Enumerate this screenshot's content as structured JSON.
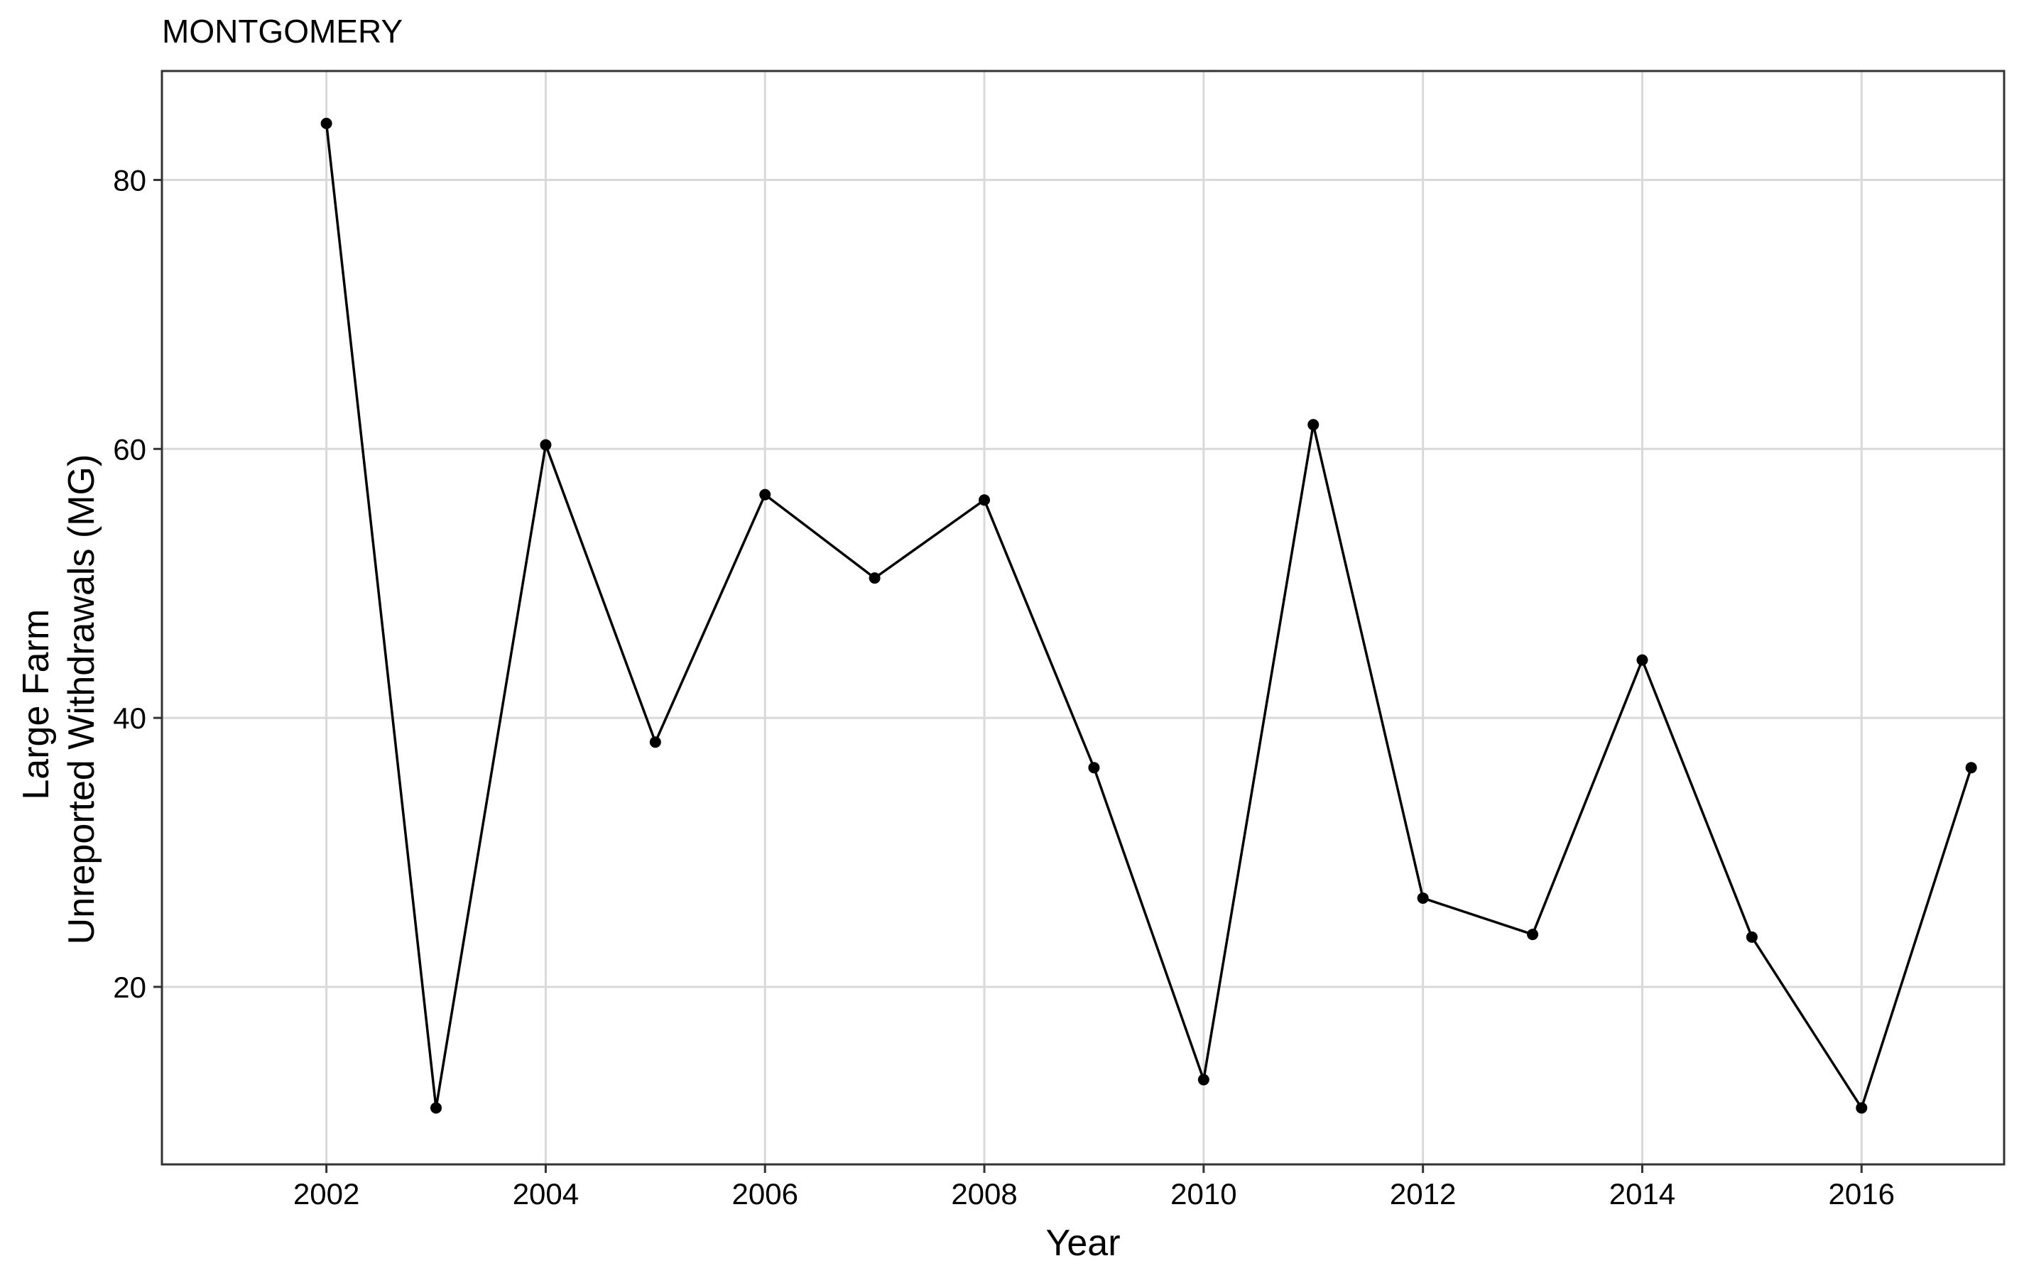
{
  "chart_data": {
    "type": "line",
    "title": "MONTGOMERY",
    "xlabel": "Year",
    "ylabel_lines": [
      "Large Farm",
      "Unreported Withdrawals (MG)"
    ],
    "x": [
      2002,
      2003,
      2004,
      2005,
      2006,
      2007,
      2008,
      2009,
      2010,
      2011,
      2012,
      2013,
      2014,
      2015,
      2016,
      2017
    ],
    "series": [
      {
        "values": [
          84.2,
          11.0,
          60.3,
          38.2,
          56.6,
          50.4,
          56.2,
          36.3,
          13.1,
          61.8,
          26.6,
          23.9,
          44.3,
          23.7,
          11.0,
          36.3
        ]
      }
    ],
    "xlim": [
      2000.5,
      2017.3
    ],
    "ylim": [
      6.8,
      88.1
    ],
    "xticks": [
      2002,
      2004,
      2006,
      2008,
      2010,
      2012,
      2014,
      2016
    ],
    "yticks": [
      20,
      40,
      60,
      80
    ],
    "grid": true,
    "legend": "none",
    "colors": {
      "line": "#000000",
      "point": "#000000",
      "grid": "#d9d9d9",
      "border": "#333333"
    }
  }
}
